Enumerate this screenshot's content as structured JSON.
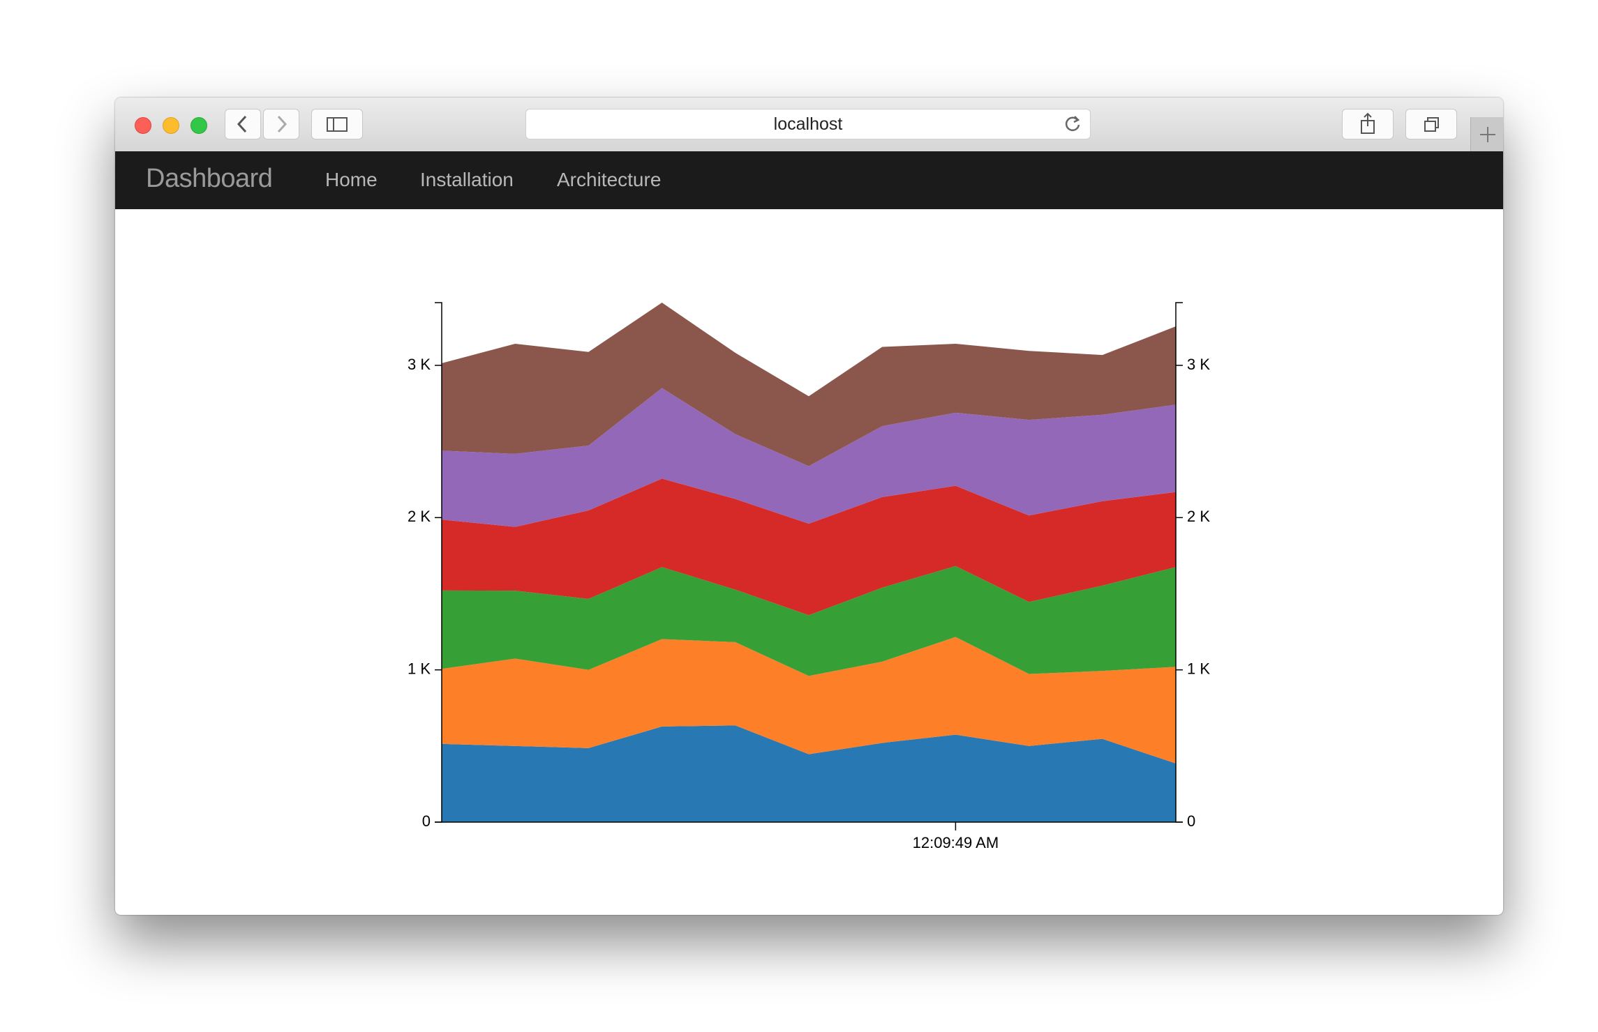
{
  "browser": {
    "url": "localhost"
  },
  "nav": {
    "brand": "Dashboard",
    "links": [
      "Home",
      "Installation",
      "Architecture"
    ]
  },
  "chart_data": {
    "type": "stacked-area",
    "categories": [
      null,
      null,
      null,
      null,
      null,
      null,
      null,
      "12:09:49 AM",
      null,
      null,
      null
    ],
    "series": [
      {
        "color": "#2878b4",
        "values": [
          514,
          500,
          486,
          628,
          635,
          446,
          520,
          574,
          500,
          547,
          385
        ]
      },
      {
        "color": "#fd7f28",
        "values": [
          493,
          574,
          514,
          574,
          547,
          514,
          534,
          642,
          473,
          446,
          635
        ]
      },
      {
        "color": "#36a036",
        "values": [
          514,
          446,
          466,
          473,
          345,
          399,
          486,
          466,
          473,
          561,
          655
        ]
      },
      {
        "color": "#d62a28",
        "values": [
          466,
          419,
          581,
          581,
          595,
          601,
          595,
          527,
          568,
          554,
          493
        ]
      },
      {
        "color": "#9468b9",
        "values": [
          453,
          480,
          426,
          595,
          426,
          378,
          466,
          480,
          628,
          568,
          574
        ]
      },
      {
        "color": "#8b564c",
        "values": [
          574,
          723,
          615,
          561,
          534,
          459,
          520,
          453,
          453,
          392,
          514
        ]
      }
    ],
    "ylim": [
      0,
      3412
    ],
    "yticks": [
      0,
      {
        "value": 1000,
        "label": "1 K"
      },
      {
        "value": 2000,
        "label": "2 K"
      },
      {
        "value": 3000,
        "label": "3 K"
      }
    ]
  }
}
